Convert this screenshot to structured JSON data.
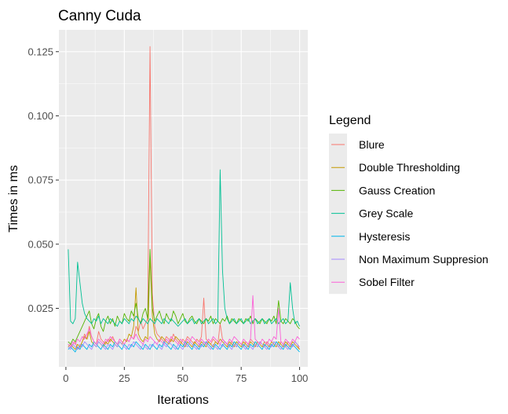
{
  "chart_data": {
    "type": "line",
    "title": "Canny Cuda",
    "xlabel": "Iterations",
    "ylabel": "Times in ms",
    "xlim": [
      -3,
      103.5
    ],
    "ylim": [
      0.0022,
      0.1335
    ],
    "x_ticks": [
      0,
      25,
      50,
      75,
      100
    ],
    "x_tick_labels": [
      "0",
      "25",
      "50",
      "75",
      "100"
    ],
    "y_ticks": [
      0.025,
      0.05,
      0.075,
      0.1,
      0.125
    ],
    "y_tick_labels": [
      "0.025",
      "0.050",
      "0.075",
      "0.100",
      "0.125"
    ],
    "grid": true,
    "legend": {
      "title": "Legend",
      "position": "right"
    },
    "x": [
      1,
      2,
      3,
      4,
      5,
      6,
      7,
      8,
      9,
      10,
      11,
      12,
      13,
      14,
      15,
      16,
      17,
      18,
      19,
      20,
      21,
      22,
      23,
      24,
      25,
      26,
      27,
      28,
      29,
      30,
      31,
      32,
      33,
      34,
      35,
      36,
      37,
      38,
      39,
      40,
      41,
      42,
      43,
      44,
      45,
      46,
      47,
      48,
      49,
      50,
      51,
      52,
      53,
      54,
      55,
      56,
      57,
      58,
      59,
      60,
      61,
      62,
      63,
      64,
      65,
      66,
      67,
      68,
      69,
      70,
      71,
      72,
      73,
      74,
      75,
      76,
      77,
      78,
      79,
      80,
      81,
      82,
      83,
      84,
      85,
      86,
      87,
      88,
      89,
      90,
      91,
      92,
      93,
      94,
      95,
      96,
      97,
      98,
      99,
      100
    ],
    "series": [
      {
        "name": "Blure",
        "color": "#F8766D",
        "values": [
          0.011,
          0.01,
          0.011,
          0.012,
          0.009,
          0.01,
          0.012,
          0.015,
          0.013,
          0.018,
          0.014,
          0.012,
          0.011,
          0.016,
          0.013,
          0.012,
          0.011,
          0.013,
          0.012,
          0.014,
          0.012,
          0.011,
          0.013,
          0.012,
          0.011,
          0.013,
          0.012,
          0.014,
          0.013,
          0.018,
          0.016,
          0.02,
          0.017,
          0.019,
          0.021,
          0.127,
          0.031,
          0.018,
          0.015,
          0.014,
          0.013,
          0.012,
          0.014,
          0.013,
          0.012,
          0.015,
          0.013,
          0.012,
          0.011,
          0.013,
          0.012,
          0.014,
          0.013,
          0.012,
          0.011,
          0.013,
          0.012,
          0.014,
          0.029,
          0.013,
          0.012,
          0.011,
          0.013,
          0.012,
          0.011,
          0.019,
          0.013,
          0.012,
          0.011,
          0.01,
          0.012,
          0.011,
          0.01,
          0.012,
          0.011,
          0.01,
          0.012,
          0.011,
          0.013,
          0.012,
          0.011,
          0.01,
          0.012,
          0.011,
          0.01,
          0.012,
          0.011,
          0.01,
          0.012,
          0.011,
          0.01,
          0.012,
          0.011,
          0.01,
          0.012,
          0.011,
          0.01,
          0.012,
          0.011,
          0.009
        ]
      },
      {
        "name": "Double Thresholding",
        "color": "#C49A00",
        "values": [
          0.01,
          0.011,
          0.01,
          0.009,
          0.011,
          0.01,
          0.012,
          0.014,
          0.013,
          0.016,
          0.012,
          0.011,
          0.01,
          0.012,
          0.011,
          0.01,
          0.012,
          0.011,
          0.013,
          0.012,
          0.011,
          0.01,
          0.012,
          0.011,
          0.013,
          0.012,
          0.015,
          0.014,
          0.018,
          0.033,
          0.015,
          0.013,
          0.012,
          0.014,
          0.013,
          0.045,
          0.022,
          0.015,
          0.013,
          0.012,
          0.014,
          0.013,
          0.012,
          0.011,
          0.013,
          0.012,
          0.014,
          0.013,
          0.012,
          0.011,
          0.01,
          0.012,
          0.011,
          0.01,
          0.012,
          0.011,
          0.01,
          0.012,
          0.011,
          0.01,
          0.012,
          0.011,
          0.01,
          0.012,
          0.011,
          0.013,
          0.012,
          0.011,
          0.01,
          0.012,
          0.011,
          0.01,
          0.012,
          0.011,
          0.01,
          0.012,
          0.011,
          0.01,
          0.012,
          0.011,
          0.01,
          0.012,
          0.011,
          0.01,
          0.012,
          0.011,
          0.01,
          0.012,
          0.011,
          0.01,
          0.012,
          0.011,
          0.01,
          0.012,
          0.011,
          0.01,
          0.012,
          0.011,
          0.01,
          0.009
        ]
      },
      {
        "name": "Gauss Creation",
        "color": "#53B400",
        "values": [
          0.012,
          0.011,
          0.013,
          0.012,
          0.014,
          0.016,
          0.018,
          0.02,
          0.022,
          0.024,
          0.019,
          0.017,
          0.021,
          0.023,
          0.018,
          0.016,
          0.02,
          0.022,
          0.019,
          0.021,
          0.018,
          0.022,
          0.02,
          0.019,
          0.023,
          0.021,
          0.02,
          0.024,
          0.022,
          0.027,
          0.021,
          0.019,
          0.023,
          0.025,
          0.021,
          0.048,
          0.025,
          0.02,
          0.022,
          0.024,
          0.021,
          0.019,
          0.023,
          0.021,
          0.02,
          0.024,
          0.022,
          0.019,
          0.021,
          0.023,
          0.02,
          0.019,
          0.021,
          0.022,
          0.02,
          0.019,
          0.021,
          0.02,
          0.019,
          0.021,
          0.02,
          0.022,
          0.019,
          0.021,
          0.02,
          0.019,
          0.021,
          0.02,
          0.022,
          0.019,
          0.021,
          0.02,
          0.019,
          0.021,
          0.02,
          0.019,
          0.021,
          0.02,
          0.022,
          0.019,
          0.021,
          0.02,
          0.019,
          0.021,
          0.02,
          0.019,
          0.021,
          0.02,
          0.022,
          0.019,
          0.028,
          0.02,
          0.019,
          0.021,
          0.02,
          0.019,
          0.021,
          0.02,
          0.018,
          0.017
        ]
      },
      {
        "name": "Grey Scale",
        "color": "#00C094",
        "values": [
          0.048,
          0.02,
          0.019,
          0.021,
          0.043,
          0.035,
          0.027,
          0.023,
          0.021,
          0.02,
          0.019,
          0.021,
          0.02,
          0.022,
          0.019,
          0.021,
          0.02,
          0.019,
          0.021,
          0.02,
          0.019,
          0.018,
          0.02,
          0.019,
          0.021,
          0.02,
          0.019,
          0.021,
          0.02,
          0.022,
          0.021,
          0.019,
          0.021,
          0.02,
          0.019,
          0.021,
          0.02,
          0.019,
          0.021,
          0.02,
          0.019,
          0.021,
          0.02,
          0.019,
          0.021,
          0.02,
          0.019,
          0.018,
          0.019,
          0.02,
          0.021,
          0.019,
          0.02,
          0.021,
          0.019,
          0.02,
          0.021,
          0.019,
          0.02,
          0.021,
          0.019,
          0.02,
          0.021,
          0.019,
          0.02,
          0.079,
          0.04,
          0.025,
          0.021,
          0.019,
          0.02,
          0.021,
          0.019,
          0.02,
          0.021,
          0.019,
          0.02,
          0.021,
          0.019,
          0.02,
          0.021,
          0.019,
          0.02,
          0.021,
          0.019,
          0.02,
          0.021,
          0.019,
          0.02,
          0.021,
          0.019,
          0.02,
          0.021,
          0.019,
          0.02,
          0.035,
          0.025,
          0.019,
          0.02,
          0.018
        ]
      },
      {
        "name": "Hysteresis",
        "color": "#00B6EB",
        "values": [
          0.009,
          0.01,
          0.009,
          0.008,
          0.01,
          0.009,
          0.011,
          0.01,
          0.009,
          0.011,
          0.01,
          0.012,
          0.011,
          0.01,
          0.009,
          0.011,
          0.01,
          0.009,
          0.011,
          0.01,
          0.012,
          0.011,
          0.01,
          0.009,
          0.011,
          0.01,
          0.009,
          0.011,
          0.01,
          0.012,
          0.011,
          0.01,
          0.009,
          0.011,
          0.01,
          0.009,
          0.011,
          0.01,
          0.009,
          0.011,
          0.01,
          0.012,
          0.011,
          0.01,
          0.009,
          0.011,
          0.01,
          0.009,
          0.011,
          0.01,
          0.012,
          0.011,
          0.01,
          0.009,
          0.011,
          0.01,
          0.009,
          0.011,
          0.01,
          0.012,
          0.011,
          0.01,
          0.009,
          0.011,
          0.01,
          0.009,
          0.011,
          0.01,
          0.009,
          0.011,
          0.01,
          0.012,
          0.011,
          0.01,
          0.009,
          0.011,
          0.01,
          0.009,
          0.011,
          0.01,
          0.012,
          0.011,
          0.01,
          0.009,
          0.011,
          0.01,
          0.009,
          0.011,
          0.01,
          0.012,
          0.011,
          0.01,
          0.009,
          0.011,
          0.01,
          0.009,
          0.011,
          0.01,
          0.009,
          0.008
        ]
      },
      {
        "name": "Non Maximum Suppresion",
        "color": "#A58AFF",
        "values": [
          0.01,
          0.009,
          0.011,
          0.01,
          0.009,
          0.011,
          0.01,
          0.012,
          0.011,
          0.01,
          0.009,
          0.011,
          0.01,
          0.012,
          0.011,
          0.01,
          0.009,
          0.011,
          0.01,
          0.009,
          0.011,
          0.01,
          0.012,
          0.011,
          0.01,
          0.009,
          0.011,
          0.01,
          0.012,
          0.011,
          0.01,
          0.009,
          0.011,
          0.01,
          0.009,
          0.011,
          0.01,
          0.012,
          0.011,
          0.01,
          0.009,
          0.011,
          0.01,
          0.012,
          0.011,
          0.01,
          0.009,
          0.011,
          0.01,
          0.009,
          0.011,
          0.01,
          0.012,
          0.011,
          0.01,
          0.009,
          0.011,
          0.01,
          0.012,
          0.011,
          0.01,
          0.009,
          0.011,
          0.01,
          0.009,
          0.011,
          0.01,
          0.012,
          0.011,
          0.01,
          0.009,
          0.011,
          0.01,
          0.012,
          0.011,
          0.01,
          0.009,
          0.011,
          0.01,
          0.009,
          0.011,
          0.01,
          0.012,
          0.011,
          0.01,
          0.009,
          0.011,
          0.01,
          0.012,
          0.011,
          0.01,
          0.009,
          0.011,
          0.01,
          0.009,
          0.011,
          0.01,
          0.012,
          0.011,
          0.01
        ]
      },
      {
        "name": "Sobel Filter",
        "color": "#FB61D7",
        "values": [
          0.011,
          0.01,
          0.012,
          0.011,
          0.013,
          0.012,
          0.014,
          0.013,
          0.015,
          0.017,
          0.014,
          0.012,
          0.011,
          0.013,
          0.012,
          0.011,
          0.013,
          0.012,
          0.014,
          0.013,
          0.012,
          0.011,
          0.013,
          0.012,
          0.011,
          0.013,
          0.012,
          0.014,
          0.013,
          0.015,
          0.013,
          0.012,
          0.011,
          0.013,
          0.012,
          0.014,
          0.013,
          0.012,
          0.011,
          0.013,
          0.012,
          0.011,
          0.013,
          0.012,
          0.014,
          0.013,
          0.012,
          0.011,
          0.013,
          0.012,
          0.011,
          0.013,
          0.012,
          0.014,
          0.013,
          0.012,
          0.011,
          0.013,
          0.012,
          0.011,
          0.013,
          0.012,
          0.014,
          0.013,
          0.012,
          0.011,
          0.013,
          0.012,
          0.011,
          0.013,
          0.012,
          0.014,
          0.013,
          0.012,
          0.011,
          0.013,
          0.012,
          0.011,
          0.013,
          0.03,
          0.013,
          0.012,
          0.011,
          0.013,
          0.012,
          0.011,
          0.013,
          0.012,
          0.014,
          0.013,
          0.025,
          0.012,
          0.011,
          0.013,
          0.012,
          0.011,
          0.013,
          0.012,
          0.014,
          0.013
        ]
      }
    ]
  }
}
